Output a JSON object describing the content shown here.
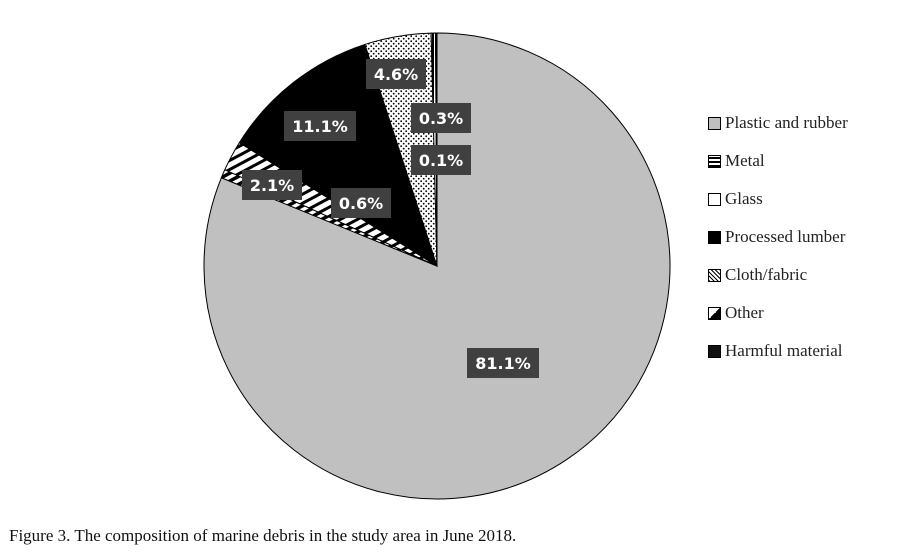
{
  "caption": "Figure 3. The composition of marine debris in the study area in June 2018.",
  "chart_data": {
    "type": "pie",
    "title": "",
    "categories": [
      "Plastic and rubber",
      "Metal",
      "Glass",
      "Processed lumber",
      "Cloth/fabric",
      "Other",
      "Harmful material"
    ],
    "values": [
      81.1,
      0.6,
      2.1,
      11.1,
      4.6,
      0.3,
      0.1
    ],
    "data_labels": [
      "81.1%",
      "0.6%",
      "2.1%",
      "11.1%",
      "4.6%",
      "0.3%",
      "0.1%"
    ],
    "legend": {
      "position": "right",
      "items": [
        "Plastic and rubber",
        "Metal",
        "Glass",
        "Processed lumber",
        "Cloth/fabric",
        "Other",
        "Harmful material"
      ]
    },
    "start": "12 o'clock",
    "direction": "clockwise",
    "colors": {
      "plastic": "#c0c0c0",
      "processed_lumber": "#000000",
      "label_box": "#404040",
      "label_text": "#ffffff"
    }
  }
}
